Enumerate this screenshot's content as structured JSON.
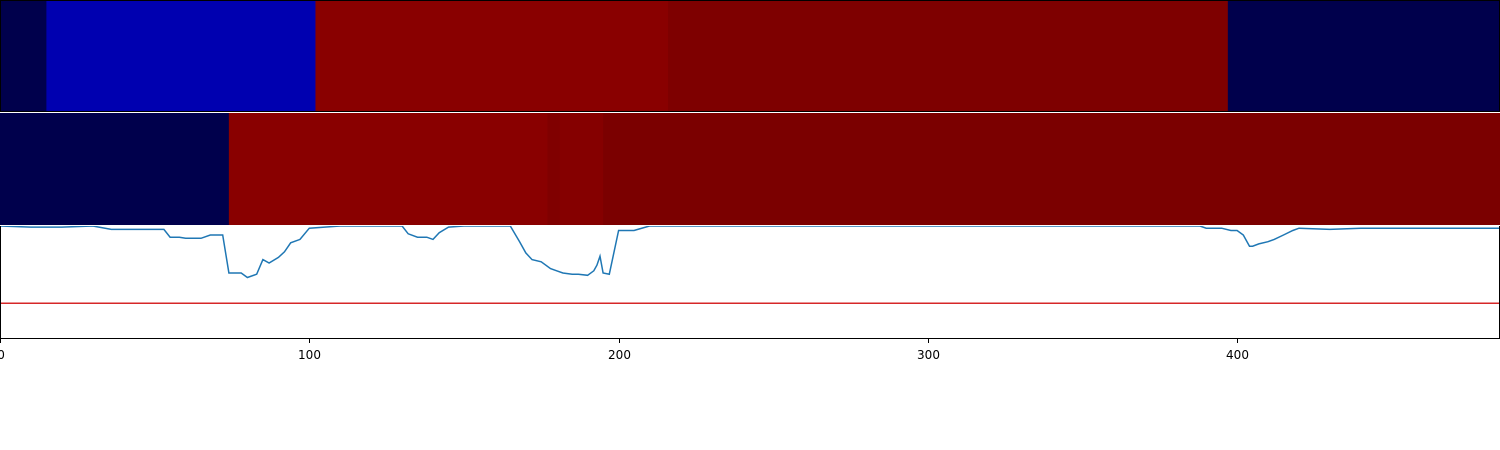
{
  "chart_data": [
    {
      "type": "heatmap",
      "xlim": [
        0,
        485
      ],
      "colormap": "seismic",
      "segments": [
        {
          "start": 0,
          "end": 15,
          "color": "#00004c"
        },
        {
          "start": 15,
          "end": 102,
          "color": "#0000b0"
        },
        {
          "start": 102,
          "end": 216,
          "color": "#890000"
        },
        {
          "start": 216,
          "end": 397,
          "color": "#7e0000"
        },
        {
          "start": 397,
          "end": 485,
          "color": "#00004c"
        }
      ]
    },
    {
      "type": "heatmap",
      "xlim": [
        0,
        485
      ],
      "colormap": "seismic",
      "segments": [
        {
          "start": 0,
          "end": 74,
          "color": "#00004c"
        },
        {
          "start": 74,
          "end": 177,
          "color": "#890000"
        },
        {
          "start": 177,
          "end": 181,
          "color": "#800000"
        },
        {
          "start": 181,
          "end": 195,
          "color": "#850000"
        },
        {
          "start": 195,
          "end": 485,
          "color": "#7b0000"
        }
      ]
    },
    {
      "type": "line",
      "xlim": [
        0,
        485
      ],
      "ylim": [
        0,
        1
      ],
      "threshold": 0.31,
      "threshold_color": "#d62728",
      "series_color": "#1f77b4",
      "x": [
        0,
        10,
        20,
        30,
        36,
        38,
        40,
        45,
        50,
        53,
        55,
        58,
        60,
        62,
        65,
        68,
        70,
        72,
        74,
        76,
        78,
        80,
        83,
        85,
        87,
        90,
        92,
        94,
        97,
        100,
        110,
        120,
        130,
        132,
        135,
        138,
        140,
        142,
        145,
        150,
        160,
        165,
        168,
        170,
        172,
        175,
        178,
        180,
        182,
        185,
        187,
        190,
        192,
        193,
        194,
        195,
        197,
        200,
        205,
        210,
        220,
        240,
        260,
        300,
        350,
        380,
        388,
        390,
        392,
        395,
        398,
        400,
        402,
        404,
        405,
        407,
        410,
        412,
        415,
        418,
        420,
        430,
        440,
        450,
        460,
        470,
        485
      ],
      "y": [
        1.0,
        0.99,
        0.99,
        1.0,
        0.97,
        0.97,
        0.97,
        0.97,
        0.97,
        0.97,
        0.9,
        0.9,
        0.89,
        0.89,
        0.89,
        0.92,
        0.92,
        0.92,
        0.58,
        0.58,
        0.58,
        0.54,
        0.57,
        0.7,
        0.67,
        0.72,
        0.77,
        0.85,
        0.88,
        0.98,
        1.0,
        1.0,
        1.0,
        0.93,
        0.9,
        0.9,
        0.88,
        0.94,
        0.99,
        1.0,
        1.0,
        1.0,
        0.86,
        0.76,
        0.7,
        0.68,
        0.62,
        0.6,
        0.58,
        0.57,
        0.57,
        0.56,
        0.6,
        0.65,
        0.73,
        0.58,
        0.57,
        0.96,
        0.96,
        1.0,
        1.0,
        1.0,
        1.0,
        1.0,
        1.0,
        1.0,
        1.0,
        0.98,
        0.98,
        0.98,
        0.96,
        0.96,
        0.92,
        0.82,
        0.82,
        0.84,
        0.86,
        0.88,
        0.92,
        0.96,
        0.98,
        0.97,
        0.98,
        0.98,
        0.98,
        0.98,
        0.98
      ]
    }
  ],
  "axis": {
    "ticks": [
      0,
      100,
      200,
      300,
      400
    ],
    "tick_labels": [
      "0",
      "100",
      "200",
      "300",
      "400"
    ]
  }
}
